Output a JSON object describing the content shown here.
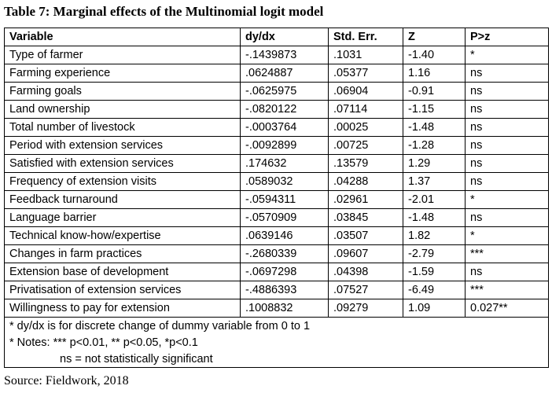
{
  "title": "Table 7: Marginal effects of the Multinomial logit model",
  "table": {
    "header": [
      "Variable",
      "dy/dx",
      "Std. Err.",
      "Z",
      "P>z"
    ],
    "rows": [
      [
        "Type of farmer",
        "-.1439873",
        ".1031",
        "-1.40",
        "*"
      ],
      [
        "Farming experience",
        ".0624887",
        ".05377",
        "1.16",
        "ns"
      ],
      [
        "Farming goals",
        "-.0625975",
        ".06904",
        "-0.91",
        "ns"
      ],
      [
        "Land ownership",
        "-.0820122",
        ".07114",
        "-1.15",
        "ns"
      ],
      [
        "Total number of livestock",
        "-.0003764",
        ".00025",
        "-1.48",
        "ns"
      ],
      [
        "Period with extension services",
        "-.0092899",
        ".00725",
        "-1.28",
        "ns"
      ],
      [
        "Satisfied with extension services",
        ".174632",
        ".13579",
        "1.29",
        "ns"
      ],
      [
        "Frequency of  extension visits",
        ".0589032",
        ".04288",
        "1.37",
        "ns"
      ],
      [
        "Feedback turnaround",
        "-.0594311",
        ".02961",
        "-2.01",
        "*"
      ],
      [
        "Language barrier",
        "-.0570909",
        ".03845",
        "-1.48",
        "ns"
      ],
      [
        "Technical know-how/expertise",
        ".0639146",
        ".03507",
        "1.82",
        "*"
      ],
      [
        "Changes in farm practices",
        "-.2680339",
        ".09607",
        "-2.79",
        "***"
      ],
      [
        "Extension base of development",
        "-.0697298",
        ".04398",
        "-1.59",
        "ns"
      ],
      [
        "Privatisation of extension services",
        "-.4886393",
        ".07527",
        "-6.49",
        "***"
      ],
      [
        "Willingness to pay for extension",
        ".1008832",
        ".09279",
        "1.09",
        "0.027**"
      ]
    ],
    "notes": [
      "* dy/dx is for discrete change of dummy variable from 0 to 1",
      "* Notes: *** p<0.01, ** p<0.05, *p<0.1",
      "ns = not statistically significant"
    ]
  },
  "source": "Source: Fieldwork, 2018"
}
